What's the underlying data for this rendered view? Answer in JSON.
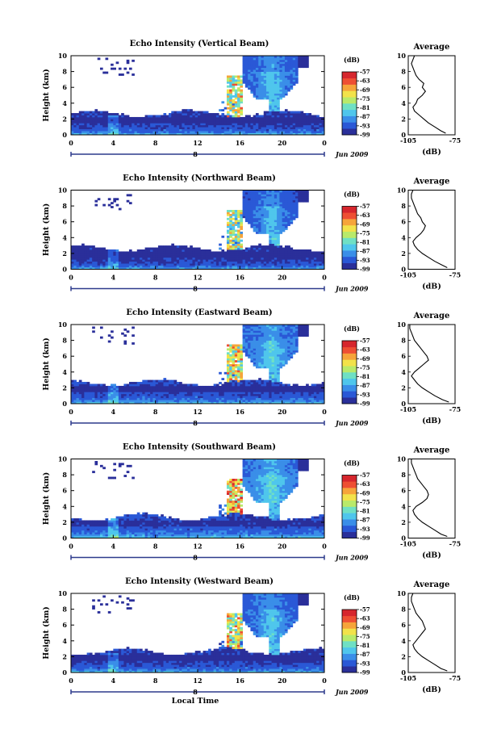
{
  "figure": {
    "date_label": "Jun 2009",
    "xlabel": "Local Time",
    "avg_title": "Average",
    "avg_xlabel": "(dB)",
    "avg_xticks": [
      "-105",
      "-75"
    ],
    "colorbar_label": "(dB)",
    "colorbar_ticks": [
      "-57",
      "-63",
      "-69",
      "-75",
      "-81",
      "-87",
      "-93",
      "-99"
    ],
    "colorbar_colors": [
      "#2a2f9a",
      "#2a58d6",
      "#3a8ee8",
      "#4fc6ec",
      "#6fe0c4",
      "#b9ea6a",
      "#f2e24a",
      "#f6a43a",
      "#ee4f33",
      "#d6262d"
    ],
    "day_label": "8",
    "yticks": [
      "0",
      "2",
      "4",
      "6",
      "8",
      "10"
    ],
    "xticks": [
      "0",
      "4",
      "8",
      "12",
      "16",
      "20",
      "0"
    ]
  },
  "chart_data": [
    {
      "type": "heatmap",
      "title": "Echo Intensity (Vertical Beam)",
      "ylabel": "Height (km)",
      "xlabel": "Local Time",
      "x_range_hours": [
        0,
        24
      ],
      "ylim": [
        0,
        10
      ],
      "zlim": [
        -99,
        -57
      ],
      "avg_profile": {
        "xlim": [
          -105,
          -75
        ],
        "x": [
          -81,
          -84,
          -88,
          -92,
          -95,
          -98,
          -101,
          -102,
          -100,
          -99,
          -96,
          -94,
          -96,
          -95,
          -98,
          -100,
          -101,
          -102,
          -103,
          -102,
          -101
        ],
        "y": [
          0.2,
          0.5,
          1.0,
          1.5,
          2.0,
          2.5,
          3.0,
          3.5,
          4.0,
          4.5,
          5.0,
          5.5,
          6.0,
          6.5,
          7.0,
          7.5,
          8.0,
          8.5,
          9.0,
          9.5,
          10.0
        ]
      }
    },
    {
      "type": "heatmap",
      "title": "Echo Intensity (Northward Beam)",
      "ylabel": "Height (km)",
      "xlabel": "Local Time",
      "x_range_hours": [
        0,
        24
      ],
      "ylim": [
        0,
        10
      ],
      "zlim": [
        -99,
        -57
      ],
      "avg_profile": {
        "xlim": [
          -105,
          -75
        ],
        "x": [
          -80,
          -83,
          -88,
          -92,
          -96,
          -99,
          -101,
          -102,
          -100,
          -97,
          -95,
          -94,
          -96,
          -97,
          -99,
          -100,
          -101,
          -102,
          -103,
          -103,
          -102
        ],
        "y": [
          0.2,
          0.5,
          1.0,
          1.5,
          2.0,
          2.5,
          3.0,
          3.5,
          4.0,
          4.5,
          5.0,
          5.5,
          6.0,
          6.5,
          7.0,
          7.5,
          8.0,
          8.5,
          9.0,
          9.5,
          10.0
        ]
      }
    },
    {
      "type": "heatmap",
      "title": "Echo Intensity (Eastward Beam)",
      "ylabel": "Height (km)",
      "xlabel": "Local Time",
      "x_range_hours": [
        0,
        24
      ],
      "ylim": [
        0,
        10
      ],
      "zlim": [
        -99,
        -57
      ],
      "avg_profile": {
        "xlim": [
          -105,
          -75
        ],
        "x": [
          -79,
          -83,
          -88,
          -92,
          -96,
          -99,
          -101,
          -103,
          -101,
          -98,
          -95,
          -92,
          -93,
          -95,
          -97,
          -99,
          -101,
          -102,
          -103,
          -104,
          -104
        ],
        "y": [
          0.2,
          0.5,
          1.0,
          1.5,
          2.0,
          2.5,
          3.0,
          3.5,
          4.0,
          4.5,
          5.0,
          5.5,
          6.0,
          6.5,
          7.0,
          7.5,
          8.0,
          8.5,
          9.0,
          9.5,
          10.0
        ]
      }
    },
    {
      "type": "heatmap",
      "title": "Echo Intensity (Southward Beam)",
      "ylabel": "Height (km)",
      "xlabel": "Local Time",
      "x_range_hours": [
        0,
        24
      ],
      "ylim": [
        0,
        10
      ],
      "zlim": [
        -99,
        -57
      ],
      "avg_profile": {
        "xlim": [
          -105,
          -75
        ],
        "x": [
          -80,
          -84,
          -88,
          -92,
          -96,
          -99,
          -101,
          -102,
          -100,
          -96,
          -93,
          -92,
          -93,
          -95,
          -97,
          -99,
          -100,
          -101,
          -102,
          -103,
          -103
        ],
        "y": [
          0.2,
          0.5,
          1.0,
          1.5,
          2.0,
          2.5,
          3.0,
          3.5,
          4.0,
          4.5,
          5.0,
          5.5,
          6.0,
          6.5,
          7.0,
          7.5,
          8.0,
          8.5,
          9.0,
          9.5,
          10.0
        ]
      }
    },
    {
      "type": "heatmap",
      "title": "Echo Intensity (Westward Beam)",
      "ylabel": "Height (km)",
      "xlabel": "Local Time",
      "x_range_hours": [
        0,
        24
      ],
      "ylim": [
        0,
        10
      ],
      "zlim": [
        -99,
        -57
      ],
      "avg_profile": {
        "xlim": [
          -105,
          -75
        ],
        "x": [
          -80,
          -84,
          -88,
          -92,
          -96,
          -99,
          -101,
          -102,
          -100,
          -98,
          -96,
          -94,
          -95,
          -96,
          -98,
          -100,
          -101,
          -102,
          -103,
          -103,
          -102
        ],
        "y": [
          0.2,
          0.5,
          1.0,
          1.5,
          2.0,
          2.5,
          3.0,
          3.5,
          4.0,
          4.5,
          5.0,
          5.5,
          6.0,
          6.5,
          7.0,
          7.5,
          8.0,
          8.5,
          9.0,
          9.5,
          10.0
        ]
      }
    }
  ]
}
